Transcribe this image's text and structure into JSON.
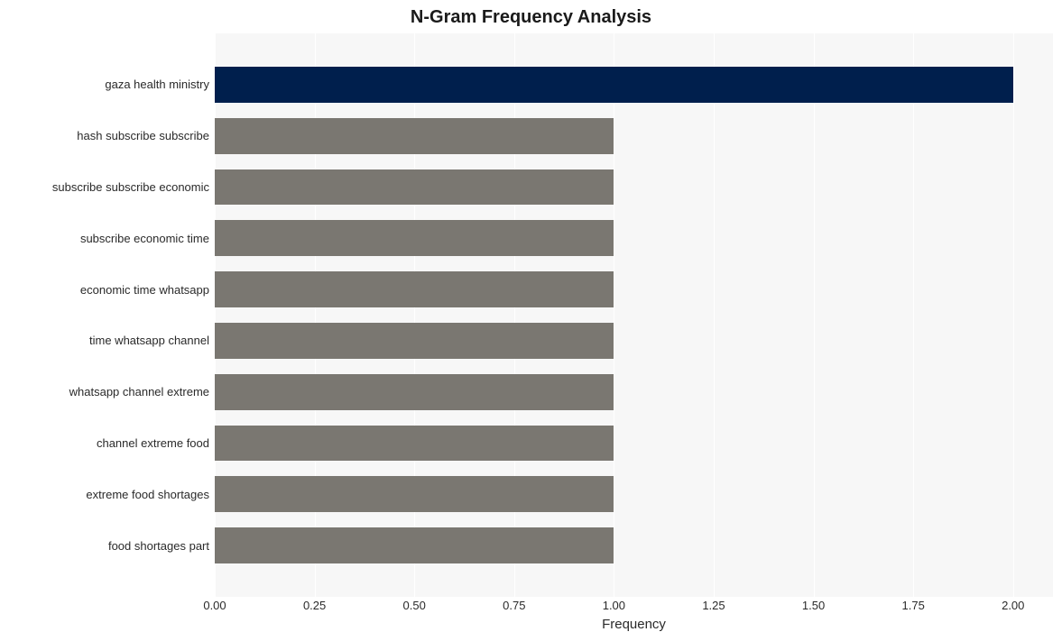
{
  "chart": {
    "type": "bar-horizontal",
    "title": "N-Gram Frequency Analysis",
    "title_fontsize": 20,
    "title_fontweight": 700,
    "xlabel": "Frequency",
    "xlabel_fontsize": 15,
    "tick_fontsize": 13,
    "background_color": "#ffffff",
    "plot_bg": "#f7f7f7",
    "grid_color": "#ffffff",
    "xlim": [
      0.0,
      2.1
    ],
    "xtick_step": 0.25,
    "xticks": [
      "0.00",
      "0.25",
      "0.50",
      "0.75",
      "1.00",
      "1.25",
      "1.50",
      "1.75",
      "2.00"
    ],
    "bar_height_ratio": 0.7,
    "categories": [
      "gaza health ministry",
      "hash subscribe subscribe",
      "subscribe subscribe economic",
      "subscribe economic time",
      "economic time whatsapp",
      "time whatsapp channel",
      "whatsapp channel extreme",
      "channel extreme food",
      "extreme food shortages",
      "food shortages part"
    ],
    "values": [
      2,
      1,
      1,
      1,
      1,
      1,
      1,
      1,
      1,
      1
    ],
    "bar_colors": [
      "#001f4d",
      "#7a7771",
      "#7a7771",
      "#7a7771",
      "#7a7771",
      "#7a7771",
      "#7a7771",
      "#7a7771",
      "#7a7771",
      "#7a7771"
    ]
  }
}
